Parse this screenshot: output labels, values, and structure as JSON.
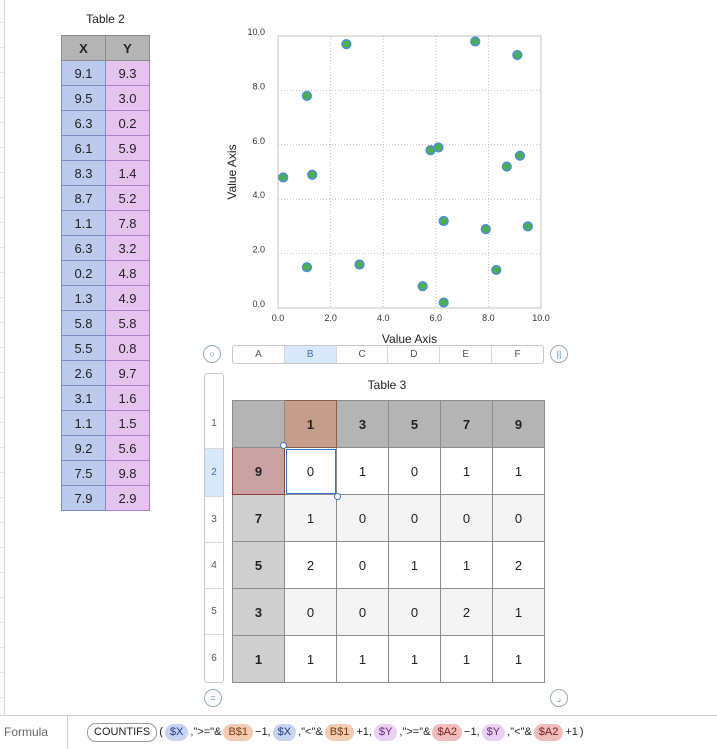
{
  "table2": {
    "title": "Table 2",
    "headers": [
      "X",
      "Y"
    ],
    "rows": [
      [
        "9.1",
        "9.3"
      ],
      [
        "9.5",
        "3.0"
      ],
      [
        "6.3",
        "0.2"
      ],
      [
        "6.1",
        "5.9"
      ],
      [
        "8.3",
        "1.4"
      ],
      [
        "8.7",
        "5.2"
      ],
      [
        "1.1",
        "7.8"
      ],
      [
        "6.3",
        "3.2"
      ],
      [
        "0.2",
        "4.8"
      ],
      [
        "1.3",
        "4.9"
      ],
      [
        "5.8",
        "5.8"
      ],
      [
        "5.5",
        "0.8"
      ],
      [
        "2.6",
        "9.7"
      ],
      [
        "3.1",
        "1.6"
      ],
      [
        "1.1",
        "1.5"
      ],
      [
        "9.2",
        "5.6"
      ],
      [
        "7.5",
        "9.8"
      ],
      [
        "7.9",
        "2.9"
      ]
    ]
  },
  "chart_data": {
    "type": "scatter",
    "x": [
      9.1,
      9.5,
      6.3,
      6.1,
      8.3,
      8.7,
      1.1,
      6.3,
      0.2,
      1.3,
      5.8,
      5.5,
      2.6,
      3.1,
      1.1,
      9.2,
      7.5,
      7.9
    ],
    "y": [
      9.3,
      3.0,
      0.2,
      5.9,
      1.4,
      5.2,
      7.8,
      3.2,
      4.8,
      4.9,
      5.8,
      0.8,
      9.7,
      1.6,
      1.5,
      5.6,
      9.8,
      2.9
    ],
    "xlabel": "Value Axis",
    "ylabel": "Value Axis",
    "xlim": [
      0,
      10
    ],
    "ylim": [
      0,
      10
    ],
    "xticks": [
      "0.0",
      "2.0",
      "4.0",
      "6.0",
      "8.0",
      "10.0"
    ],
    "yticks": [
      "0.0",
      "2.0",
      "4.0",
      "6.0",
      "8.0",
      "10.0"
    ],
    "grid": true,
    "marker_fill": "#4caf50",
    "marker_edge": "#4a8fd6"
  },
  "column_headers": [
    "A",
    "B",
    "C",
    "D",
    "E",
    "F"
  ],
  "selected_column": "B",
  "row_headers": [
    "1",
    "2",
    "3",
    "4",
    "5",
    "6"
  ],
  "selected_row": "2",
  "table3": {
    "title": "Table 3",
    "col_headers": [
      "1",
      "3",
      "5",
      "7",
      "9"
    ],
    "rows": [
      {
        "header": "9",
        "values": [
          "0",
          "1",
          "0",
          "1",
          "1"
        ]
      },
      {
        "header": "7",
        "values": [
          "1",
          "0",
          "0",
          "0",
          "0"
        ]
      },
      {
        "header": "5",
        "values": [
          "2",
          "0",
          "1",
          "1",
          "2"
        ]
      },
      {
        "header": "3",
        "values": [
          "0",
          "0",
          "0",
          "2",
          "1"
        ]
      },
      {
        "header": "1",
        "values": [
          "1",
          "1",
          "1",
          "1",
          "1"
        ]
      }
    ]
  },
  "formula_bar": {
    "label": "Formula",
    "tokens": [
      {
        "kind": "fn",
        "text": "COUNTIFS"
      },
      {
        "kind": "txt",
        "text": "("
      },
      {
        "kind": "x",
        "text": "$X"
      },
      {
        "kind": "txt",
        "text": ",\">=\"&"
      },
      {
        "kind": "b",
        "text": "B$1"
      },
      {
        "kind": "txt",
        "text": "−1,"
      },
      {
        "kind": "x",
        "text": "$X"
      },
      {
        "kind": "txt",
        "text": ",\"<\"&"
      },
      {
        "kind": "b",
        "text": "B$1"
      },
      {
        "kind": "txt",
        "text": "+1,"
      },
      {
        "kind": "y",
        "text": "$Y"
      },
      {
        "kind": "txt",
        "text": ",\">=\"&"
      },
      {
        "kind": "a",
        "text": "$A2"
      },
      {
        "kind": "txt",
        "text": "−1,"
      },
      {
        "kind": "y",
        "text": "$Y"
      },
      {
        "kind": "txt",
        "text": ",\"<\"&"
      },
      {
        "kind": "a",
        "text": "$A2"
      },
      {
        "kind": "txt",
        "text": "+1"
      },
      {
        "kind": "txt",
        "text": ")"
      }
    ]
  }
}
